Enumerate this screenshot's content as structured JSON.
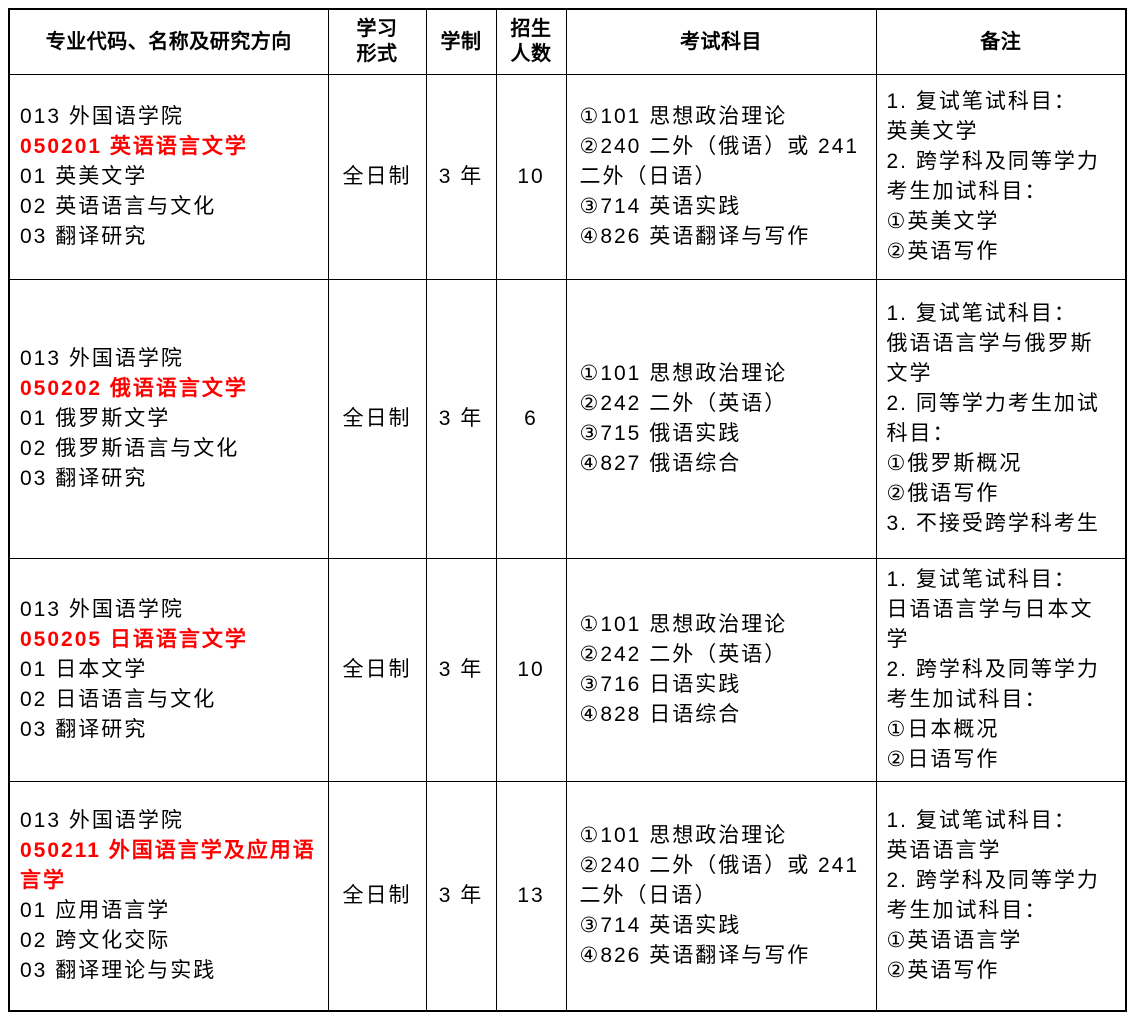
{
  "colors": {
    "highlight_red": "#ff0000"
  },
  "table": {
    "headers": [
      {
        "label": "专业代码、名称及研究方向"
      },
      {
        "label": "学习\n形式"
      },
      {
        "label": "学制"
      },
      {
        "label": "招生\n人数"
      },
      {
        "label": "考试科目"
      },
      {
        "label": "备注"
      }
    ],
    "rows": [
      {
        "program": [
          "013 外国语学院",
          "050201 英语语言文学",
          "01 英美文学",
          "02 英语语言与文化",
          "03 翻译研究"
        ],
        "study_form": "全日制",
        "duration": "3 年",
        "enrollment": "10",
        "exams": [
          "①101 思想政治理论",
          "②240 二外（俄语）或 241",
          "二外（日语）",
          "③714 英语实践",
          "④826 英语翻译与写作"
        ],
        "remarks": [
          "1. 复试笔试科目：",
          "英美文学",
          "2. 跨学科及同等学力",
          "考生加试科目：",
          "①英美文学",
          "②英语写作"
        ]
      },
      {
        "program": [
          "013 外国语学院",
          "050202 俄语语言文学",
          "01 俄罗斯文学",
          "02 俄罗斯语言与文化",
          "03 翻译研究"
        ],
        "study_form": "全日制",
        "duration": "3 年",
        "enrollment": "6",
        "exams": [
          "①101 思想政治理论",
          "②242 二外（英语）",
          "③715 俄语实践",
          "④827 俄语综合"
        ],
        "remarks": [
          "1. 复试笔试科目：",
          "俄语语言学与俄罗斯",
          "文学",
          "2. 同等学力考生加试",
          "科目：",
          "①俄罗斯概况",
          "②俄语写作",
          "3. 不接受跨学科考生"
        ]
      },
      {
        "program": [
          "013 外国语学院",
          "050205 日语语言文学",
          "01 日本文学",
          "02 日语语言与文化",
          "03 翻译研究"
        ],
        "study_form": "全日制",
        "duration": "3 年",
        "enrollment": "10",
        "exams": [
          "①101 思想政治理论",
          "②242 二外（英语）",
          "③716 日语实践",
          "④828 日语综合"
        ],
        "remarks": [
          "1. 复试笔试科目：",
          "日语语言学与日本文",
          "学",
          "2. 跨学科及同等学力",
          "考生加试科目：",
          "①日本概况",
          "②日语写作"
        ]
      },
      {
        "program": [
          "013 外国语学院",
          "050211 外国语言学及应用语言学",
          "01 应用语言学",
          "02 跨文化交际",
          "03 翻译理论与实践"
        ],
        "study_form": "全日制",
        "duration": "3 年",
        "enrollment": "13",
        "exams": [
          "①101 思想政治理论",
          "②240 二外（俄语）或 241",
          "二外（日语）",
          "③714 英语实践",
          "④826 英语翻译与写作"
        ],
        "remarks": [
          "1. 复试笔试科目：",
          "英语语言学",
          "2. 跨学科及同等学力",
          "考生加试科目：",
          "①英语语言学",
          "②英语写作"
        ]
      }
    ]
  }
}
